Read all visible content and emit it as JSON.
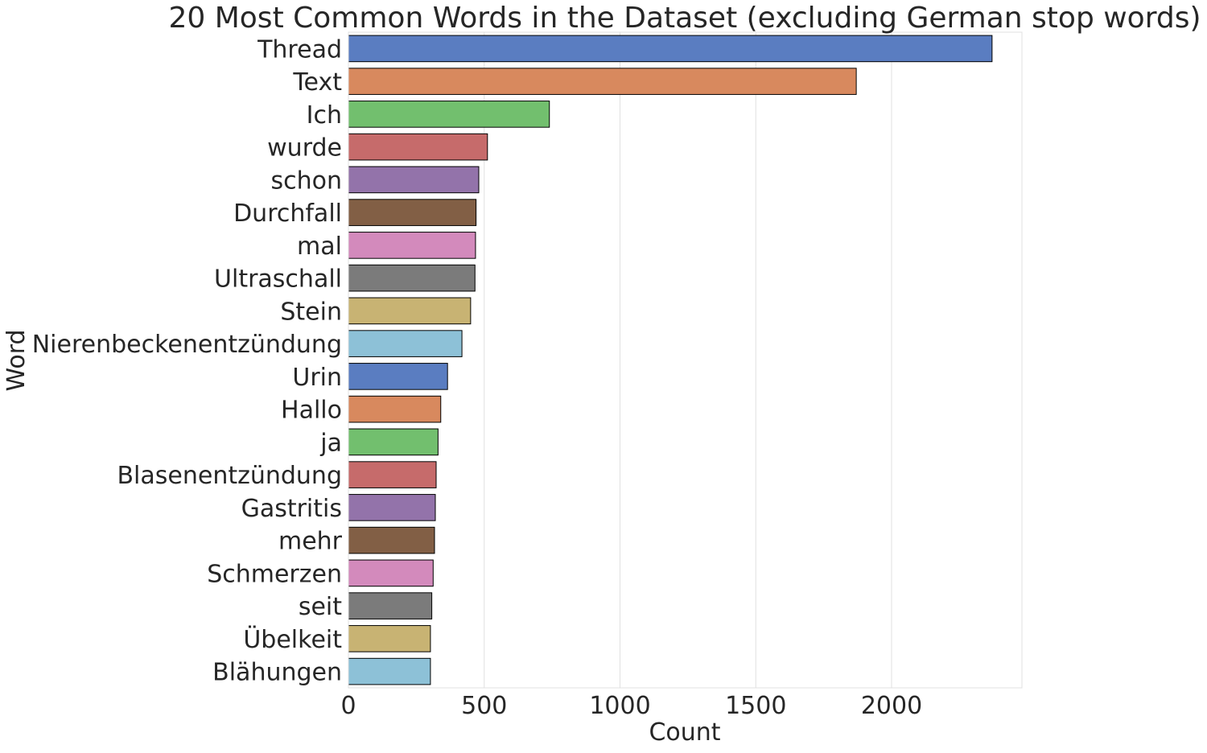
{
  "chart_data": {
    "type": "bar",
    "orientation": "horizontal",
    "title": "20 Most Common Words in the Dataset (excluding German stop words)",
    "xlabel": "Count",
    "ylabel": "Word",
    "xlim": [
      0,
      2480
    ],
    "xticks": [
      0,
      500,
      1000,
      1500,
      2000
    ],
    "grid": "vertical",
    "categories": [
      "Thread",
      "Text",
      "Ich",
      "wurde",
      "schon",
      "Durchfall",
      "mal",
      "Ultraschall",
      "Stein",
      "Nierenbeckenentzündung",
      "Urin",
      "Hallo",
      "ja",
      "Blasenentzündung",
      "Gastritis",
      "mehr",
      "Schmerzen",
      "seit",
      "Übelkeit",
      "Blähungen"
    ],
    "values": [
      2370,
      1870,
      740,
      512,
      480,
      470,
      468,
      466,
      450,
      418,
      365,
      340,
      330,
      323,
      320,
      317,
      312,
      307,
      302,
      302
    ],
    "colors": [
      "#5a7dc1",
      "#d8895e",
      "#72bf6e",
      "#c66b6b",
      "#9373aa",
      "#825f45",
      "#d38abc",
      "#7b7b7b",
      "#c8b373",
      "#8dc1d7",
      "#5a7dc1",
      "#d8895e",
      "#72bf6e",
      "#c66b6b",
      "#9373aa",
      "#825f45",
      "#d38abc",
      "#7b7b7b",
      "#c8b373",
      "#8dc1d7"
    ]
  }
}
